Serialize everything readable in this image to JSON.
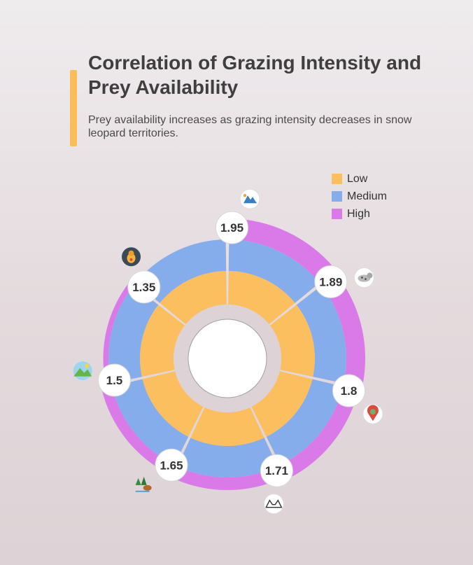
{
  "header": {
    "title": "Correlation of Grazing Intensity and Prey Availability",
    "subtitle": "Prey availability increases as grazing intensity decreases in snow leopard territories."
  },
  "colors": {
    "accent": "#fbbd5a",
    "low": "#fbbf60",
    "medium": "#85aceb",
    "high": "#d97ae8"
  },
  "chart_data": {
    "type": "radial-stacked-bar",
    "series": [
      {
        "name": "Low",
        "color": "#fbbf60"
      },
      {
        "name": "Medium",
        "color": "#85aceb"
      },
      {
        "name": "High",
        "color": "#d97ae8"
      }
    ],
    "legend_position": "top-right",
    "points": [
      {
        "value": 1.95,
        "icon": "mountain-icon"
      },
      {
        "value": 1.89,
        "icon": "snow-leopard-icon"
      },
      {
        "value": 1.8,
        "icon": "location-pin-icon"
      },
      {
        "value": 1.71,
        "icon": "mountain-pass-icon"
      },
      {
        "value": 1.65,
        "icon": "forest-bear-icon"
      },
      {
        "value": 1.5,
        "icon": "meadow-icon"
      },
      {
        "value": 1.35,
        "icon": "marmot-icon"
      }
    ]
  }
}
